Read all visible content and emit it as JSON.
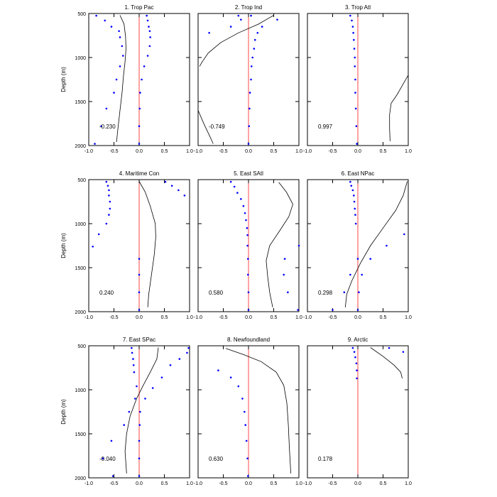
{
  "chart_data": [
    {
      "type": "line",
      "title": "1. Trop Pac",
      "ylabel": "Depth (m)",
      "correlation": "-0.230",
      "xlim": [
        -1.0,
        1.0
      ],
      "ylim": [
        2000,
        500
      ],
      "x_tick_labels": [
        "-1.0",
        "-0.5",
        "0.0",
        "0.5",
        "1.0"
      ],
      "y_tick_labels": [
        "500",
        "1000",
        "1500",
        "2000"
      ],
      "curve": [
        {
          "x": -0.38,
          "y": 520
        },
        {
          "x": -0.3,
          "y": 620
        },
        {
          "x": -0.27,
          "y": 760
        },
        {
          "x": -0.26,
          "y": 900
        },
        {
          "x": -0.28,
          "y": 1050
        },
        {
          "x": -0.31,
          "y": 1200
        },
        {
          "x": -0.34,
          "y": 1400
        },
        {
          "x": -0.38,
          "y": 1600
        },
        {
          "x": -0.42,
          "y": 1800
        },
        {
          "x": -0.45,
          "y": 1960
        }
      ],
      "points": [
        {
          "x": -0.85,
          "y": 525
        },
        {
          "x": 0.15,
          "y": 525
        },
        {
          "x": -0.68,
          "y": 580
        },
        {
          "x": 0.17,
          "y": 580
        },
        {
          "x": -0.55,
          "y": 650
        },
        {
          "x": 0.19,
          "y": 650
        },
        {
          "x": -0.4,
          "y": 700
        },
        {
          "x": 0.21,
          "y": 700
        },
        {
          "x": -0.38,
          "y": 770
        },
        {
          "x": 0.22,
          "y": 770
        },
        {
          "x": -0.34,
          "y": 870
        },
        {
          "x": 0.21,
          "y": 870
        },
        {
          "x": -0.32,
          "y": 980
        },
        {
          "x": 0.17,
          "y": 980
        },
        {
          "x": -0.38,
          "y": 1100
        },
        {
          "x": 0.1,
          "y": 1100
        },
        {
          "x": -0.45,
          "y": 1250
        },
        {
          "x": 0.05,
          "y": 1250
        },
        {
          "x": -0.5,
          "y": 1400
        },
        {
          "x": 0.02,
          "y": 1400
        },
        {
          "x": -0.65,
          "y": 1580
        },
        {
          "x": 0.01,
          "y": 1580
        },
        {
          "x": -0.75,
          "y": 1780
        },
        {
          "x": 0.0,
          "y": 1780
        },
        {
          "x": -0.88,
          "y": 1980
        },
        {
          "x": 0.0,
          "y": 1980
        }
      ]
    },
    {
      "type": "line",
      "title": "2. Trop Ind",
      "ylabel": "",
      "correlation": "-0.749",
      "xlim": [
        -1.0,
        1.0
      ],
      "ylim": [
        2000,
        500
      ],
      "x_tick_labels": [
        "-1.0",
        "-0.5",
        "0.0",
        "0.5",
        "1.0"
      ],
      "y_tick_labels": [
        "500",
        "1000",
        "1500",
        "2000"
      ],
      "curve": [
        {
          "x": 0.5,
          "y": 520
        },
        {
          "x": 0.2,
          "y": 620
        },
        {
          "x": -0.2,
          "y": 720
        },
        {
          "x": -0.55,
          "y": 830
        },
        {
          "x": -0.8,
          "y": 950
        },
        {
          "x": -0.92,
          "y": 1050
        },
        {
          "x": -0.97,
          "y": 1100
        }
      ],
      "curve2": [
        {
          "x": -1.0,
          "y": 1600
        },
        {
          "x": -0.88,
          "y": 1760
        },
        {
          "x": -0.78,
          "y": 1880
        },
        {
          "x": -0.7,
          "y": 1980
        }
      ],
      "points": [
        {
          "x": -0.2,
          "y": 525
        },
        {
          "x": 0.05,
          "y": 525
        },
        {
          "x": -0.15,
          "y": 570
        },
        {
          "x": 0.57,
          "y": 570
        },
        {
          "x": -0.35,
          "y": 650
        },
        {
          "x": 0.27,
          "y": 650
        },
        {
          "x": -0.78,
          "y": 720
        },
        {
          "x": 0.18,
          "y": 720
        },
        {
          "x": 0.13,
          "y": 800
        },
        {
          "x": 0.11,
          "y": 900
        },
        {
          "x": 0.08,
          "y": 1000
        },
        {
          "x": 0.06,
          "y": 1100
        },
        {
          "x": 0.05,
          "y": 1250
        },
        {
          "x": 0.03,
          "y": 1400
        },
        {
          "x": 0.02,
          "y": 1580
        },
        {
          "x": 0.01,
          "y": 1780
        },
        {
          "x": 0.0,
          "y": 1980
        }
      ]
    },
    {
      "type": "line",
      "title": "3. Trop Atl",
      "ylabel": "",
      "correlation": "0.997",
      "xlim": [
        -1.0,
        1.0
      ],
      "ylim": [
        2000,
        500
      ],
      "x_tick_labels": [
        "-1.0",
        "-0.5",
        "0.0",
        "0.5",
        "1.0"
      ],
      "y_tick_labels": [
        "500",
        "1000",
        "1500",
        "2000"
      ],
      "curve": [
        {
          "x": 1.0,
          "y": 1200
        },
        {
          "x": 0.9,
          "y": 1300
        },
        {
          "x": 0.78,
          "y": 1420
        },
        {
          "x": 0.66,
          "y": 1520
        },
        {
          "x": 0.63,
          "y": 1650
        },
        {
          "x": 0.63,
          "y": 1800
        },
        {
          "x": 0.64,
          "y": 1950
        }
      ],
      "points": [
        {
          "x": -0.15,
          "y": 525
        },
        {
          "x": -0.12,
          "y": 580
        },
        {
          "x": -0.1,
          "y": 650
        },
        {
          "x": -0.09,
          "y": 720
        },
        {
          "x": -0.08,
          "y": 800
        },
        {
          "x": -0.07,
          "y": 900
        },
        {
          "x": -0.06,
          "y": 1000
        },
        {
          "x": -0.06,
          "y": 1100
        },
        {
          "x": -0.05,
          "y": 1250
        },
        {
          "x": -0.05,
          "y": 1400
        },
        {
          "x": -0.04,
          "y": 1580
        },
        {
          "x": -0.03,
          "y": 1780
        },
        {
          "x": -0.02,
          "y": 1980
        }
      ]
    },
    {
      "type": "line",
      "title": "4. Maritime Con",
      "ylabel": "Depth (m)",
      "correlation": "0.240",
      "xlim": [
        -1.0,
        1.0
      ],
      "ylim": [
        2000,
        500
      ],
      "x_tick_labels": [
        "-1.0",
        "-0.5",
        "0.0",
        "0.5",
        "1.0"
      ],
      "y_tick_labels": [
        "500",
        "1000",
        "1500",
        "2000"
      ],
      "curve": [
        {
          "x": 0.0,
          "y": 520
        },
        {
          "x": 0.12,
          "y": 640
        },
        {
          "x": 0.22,
          "y": 800
        },
        {
          "x": 0.32,
          "y": 1000
        },
        {
          "x": 0.33,
          "y": 1150
        },
        {
          "x": 0.3,
          "y": 1350
        },
        {
          "x": 0.24,
          "y": 1600
        },
        {
          "x": 0.19,
          "y": 1800
        },
        {
          "x": 0.17,
          "y": 1950
        }
      ],
      "points": [
        {
          "x": -0.65,
          "y": 525
        },
        {
          "x": 0.52,
          "y": 525
        },
        {
          "x": -0.62,
          "y": 570
        },
        {
          "x": 0.65,
          "y": 570
        },
        {
          "x": -0.6,
          "y": 620
        },
        {
          "x": 0.78,
          "y": 620
        },
        {
          "x": -0.6,
          "y": 680
        },
        {
          "x": 0.9,
          "y": 680
        },
        {
          "x": -0.58,
          "y": 750
        },
        {
          "x": -0.58,
          "y": 830
        },
        {
          "x": -0.6,
          "y": 900
        },
        {
          "x": -0.65,
          "y": 1000
        },
        {
          "x": -0.8,
          "y": 1120
        },
        {
          "x": -0.92,
          "y": 1260
        },
        {
          "x": 0.0,
          "y": 1400
        },
        {
          "x": 0.0,
          "y": 1580
        },
        {
          "x": 0.0,
          "y": 1780
        },
        {
          "x": 0.0,
          "y": 1980
        }
      ]
    },
    {
      "type": "line",
      "title": "5. East SAtl",
      "ylabel": "",
      "correlation": "0.580",
      "xlim": [
        -1.0,
        1.0
      ],
      "ylim": [
        2000,
        500
      ],
      "x_tick_labels": [
        "-1.0",
        "-0.5",
        "0.0",
        "0.5",
        "1.0"
      ],
      "y_tick_labels": [
        "500",
        "1000",
        "1500",
        "2000"
      ],
      "curve": [
        {
          "x": 0.6,
          "y": 530
        },
        {
          "x": 0.75,
          "y": 640
        },
        {
          "x": 0.88,
          "y": 780
        },
        {
          "x": 0.8,
          "y": 920
        },
        {
          "x": 0.62,
          "y": 1080
        },
        {
          "x": 0.42,
          "y": 1250
        },
        {
          "x": 0.35,
          "y": 1420
        },
        {
          "x": 0.38,
          "y": 1600
        },
        {
          "x": 0.42,
          "y": 1780
        },
        {
          "x": 0.48,
          "y": 1950
        }
      ],
      "points": [
        {
          "x": -0.35,
          "y": 525
        },
        {
          "x": -0.28,
          "y": 580
        },
        {
          "x": -0.22,
          "y": 650
        },
        {
          "x": -0.15,
          "y": 720
        },
        {
          "x": -0.1,
          "y": 800
        },
        {
          "x": -0.07,
          "y": 880
        },
        {
          "x": -0.05,
          "y": 960
        },
        {
          "x": -0.03,
          "y": 1050
        },
        {
          "x": -0.02,
          "y": 1130
        },
        {
          "x": -0.02,
          "y": 1250
        },
        {
          "x": 1.0,
          "y": 1250
        },
        {
          "x": -0.01,
          "y": 1400
        },
        {
          "x": 0.72,
          "y": 1400
        },
        {
          "x": -0.01,
          "y": 1580
        },
        {
          "x": 0.7,
          "y": 1580
        },
        {
          "x": 0.0,
          "y": 1780
        },
        {
          "x": 0.78,
          "y": 1780
        },
        {
          "x": 0.0,
          "y": 1980
        },
        {
          "x": 0.98,
          "y": 1980
        }
      ]
    },
    {
      "type": "line",
      "title": "6. East NPac",
      "ylabel": "",
      "correlation": "0.298",
      "xlim": [
        -1.0,
        1.0
      ],
      "ylim": [
        2000,
        500
      ],
      "x_tick_labels": [
        "-1.0",
        "-0.5",
        "0.0",
        "0.5",
        "1.0"
      ],
      "y_tick_labels": [
        "500",
        "1000",
        "1500",
        "2000"
      ],
      "curve": [
        {
          "x": 0.98,
          "y": 520
        },
        {
          "x": 0.9,
          "y": 680
        },
        {
          "x": 0.75,
          "y": 850
        },
        {
          "x": 0.5,
          "y": 1050
        },
        {
          "x": 0.25,
          "y": 1250
        },
        {
          "x": 0.05,
          "y": 1450
        },
        {
          "x": -0.12,
          "y": 1650
        },
        {
          "x": -0.22,
          "y": 1800
        },
        {
          "x": -0.25,
          "y": 1950
        }
      ],
      "points": [
        {
          "x": -0.15,
          "y": 525
        },
        {
          "x": -0.13,
          "y": 570
        },
        {
          "x": -0.1,
          "y": 620
        },
        {
          "x": -0.08,
          "y": 680
        },
        {
          "x": -0.07,
          "y": 750
        },
        {
          "x": -0.06,
          "y": 830
        },
        {
          "x": -0.05,
          "y": 900
        },
        {
          "x": -0.04,
          "y": 1000
        },
        {
          "x": 0.92,
          "y": 1120
        },
        {
          "x": 0.57,
          "y": 1250
        },
        {
          "x": 0.25,
          "y": 1400
        },
        {
          "x": 0.0,
          "y": 1400
        },
        {
          "x": -0.15,
          "y": 1580
        },
        {
          "x": 0.08,
          "y": 1580
        },
        {
          "x": -0.27,
          "y": 1780
        },
        {
          "x": 0.02,
          "y": 1780
        },
        {
          "x": -0.5,
          "y": 1980
        },
        {
          "x": 0.0,
          "y": 1980
        }
      ]
    },
    {
      "type": "line",
      "title": "7. East SPac",
      "ylabel": "Depth (m)",
      "correlation": "-0.040",
      "xlim": [
        -1.0,
        1.0
      ],
      "ylim": [
        2000,
        500
      ],
      "x_tick_labels": [
        "-1.0",
        "-0.5",
        "0.0",
        "0.5",
        "1.0"
      ],
      "y_tick_labels": [
        "500",
        "1000",
        "1500",
        "2000"
      ],
      "curve": [
        {
          "x": 0.38,
          "y": 520
        },
        {
          "x": 0.35,
          "y": 650
        },
        {
          "x": 0.22,
          "y": 800
        },
        {
          "x": 0.08,
          "y": 950
        },
        {
          "x": -0.05,
          "y": 1100
        },
        {
          "x": -0.18,
          "y": 1300
        },
        {
          "x": -0.25,
          "y": 1500
        },
        {
          "x": -0.28,
          "y": 1700
        },
        {
          "x": -0.25,
          "y": 1950
        }
      ],
      "points": [
        {
          "x": -0.15,
          "y": 525
        },
        {
          "x": 0.98,
          "y": 525
        },
        {
          "x": -0.14,
          "y": 580
        },
        {
          "x": 0.95,
          "y": 580
        },
        {
          "x": -0.12,
          "y": 650
        },
        {
          "x": 0.8,
          "y": 650
        },
        {
          "x": -0.11,
          "y": 720
        },
        {
          "x": 0.62,
          "y": 720
        },
        {
          "x": -0.1,
          "y": 800
        },
        {
          "x": 0.45,
          "y": 860
        },
        {
          "x": -0.05,
          "y": 960
        },
        {
          "x": 0.27,
          "y": 980
        },
        {
          "x": -0.08,
          "y": 1100
        },
        {
          "x": 0.12,
          "y": 1100
        },
        {
          "x": -0.2,
          "y": 1250
        },
        {
          "x": 0.02,
          "y": 1250
        },
        {
          "x": -0.3,
          "y": 1400
        },
        {
          "x": 0.01,
          "y": 1400
        },
        {
          "x": -0.55,
          "y": 1580
        },
        {
          "x": 0.0,
          "y": 1580
        },
        {
          "x": -0.72,
          "y": 1780
        },
        {
          "x": 0.0,
          "y": 1780
        },
        {
          "x": -0.52,
          "y": 1980
        },
        {
          "x": 0.0,
          "y": 1980
        }
      ]
    },
    {
      "type": "line",
      "title": "8. Newfoundland",
      "ylabel": "",
      "correlation": "0.630",
      "xlim": [
        -1.0,
        1.0
      ],
      "ylim": [
        2000,
        500
      ],
      "x_tick_labels": [
        "-1.0",
        "-0.5",
        "0.0",
        "0.5",
        "1.0"
      ],
      "y_tick_labels": [
        "500",
        "1000",
        "1500",
        "2000"
      ],
      "curve": [
        {
          "x": -0.45,
          "y": 530
        },
        {
          "x": -0.1,
          "y": 600
        },
        {
          "x": 0.25,
          "y": 680
        },
        {
          "x": 0.55,
          "y": 800
        },
        {
          "x": 0.7,
          "y": 950
        },
        {
          "x": 0.76,
          "y": 1150
        },
        {
          "x": 0.79,
          "y": 1400
        },
        {
          "x": 0.81,
          "y": 1650
        },
        {
          "x": 0.84,
          "y": 1950
        }
      ],
      "points": [
        {
          "x": -0.6,
          "y": 780
        },
        {
          "x": -0.35,
          "y": 860
        },
        {
          "x": -0.2,
          "y": 960
        },
        {
          "x": -0.12,
          "y": 1100
        },
        {
          "x": -0.08,
          "y": 1250
        },
        {
          "x": -0.06,
          "y": 1400
        },
        {
          "x": -0.04,
          "y": 1580
        },
        {
          "x": -0.02,
          "y": 1780
        },
        {
          "x": -0.01,
          "y": 1980
        }
      ]
    },
    {
      "type": "line",
      "title": "9. Arctic",
      "ylabel": "",
      "correlation": "0.178",
      "xlim": [
        -1.0,
        1.0
      ],
      "ylim": [
        2000,
        500
      ],
      "x_tick_labels": [
        "-1.0",
        "-0.5",
        "0.0",
        "0.5",
        "1.0"
      ],
      "y_tick_labels": [
        "500",
        "1000",
        "1500",
        "2000"
      ],
      "curve": [
        {
          "x": 0.25,
          "y": 520
        },
        {
          "x": 0.5,
          "y": 620
        },
        {
          "x": 0.72,
          "y": 720
        },
        {
          "x": 0.85,
          "y": 800
        },
        {
          "x": 0.88,
          "y": 870
        }
      ],
      "points": [
        {
          "x": -0.1,
          "y": 525
        },
        {
          "x": 0.62,
          "y": 525
        },
        {
          "x": -0.07,
          "y": 570
        },
        {
          "x": 0.9,
          "y": 570
        },
        {
          "x": -0.05,
          "y": 630
        },
        {
          "x": -0.03,
          "y": 700
        },
        {
          "x": -0.02,
          "y": 780
        },
        {
          "x": -0.02,
          "y": 870
        }
      ]
    }
  ],
  "colors": {
    "curve": "#000000",
    "points": "#0000ff",
    "zero_line": "#ff4444",
    "frame": "#000000"
  }
}
